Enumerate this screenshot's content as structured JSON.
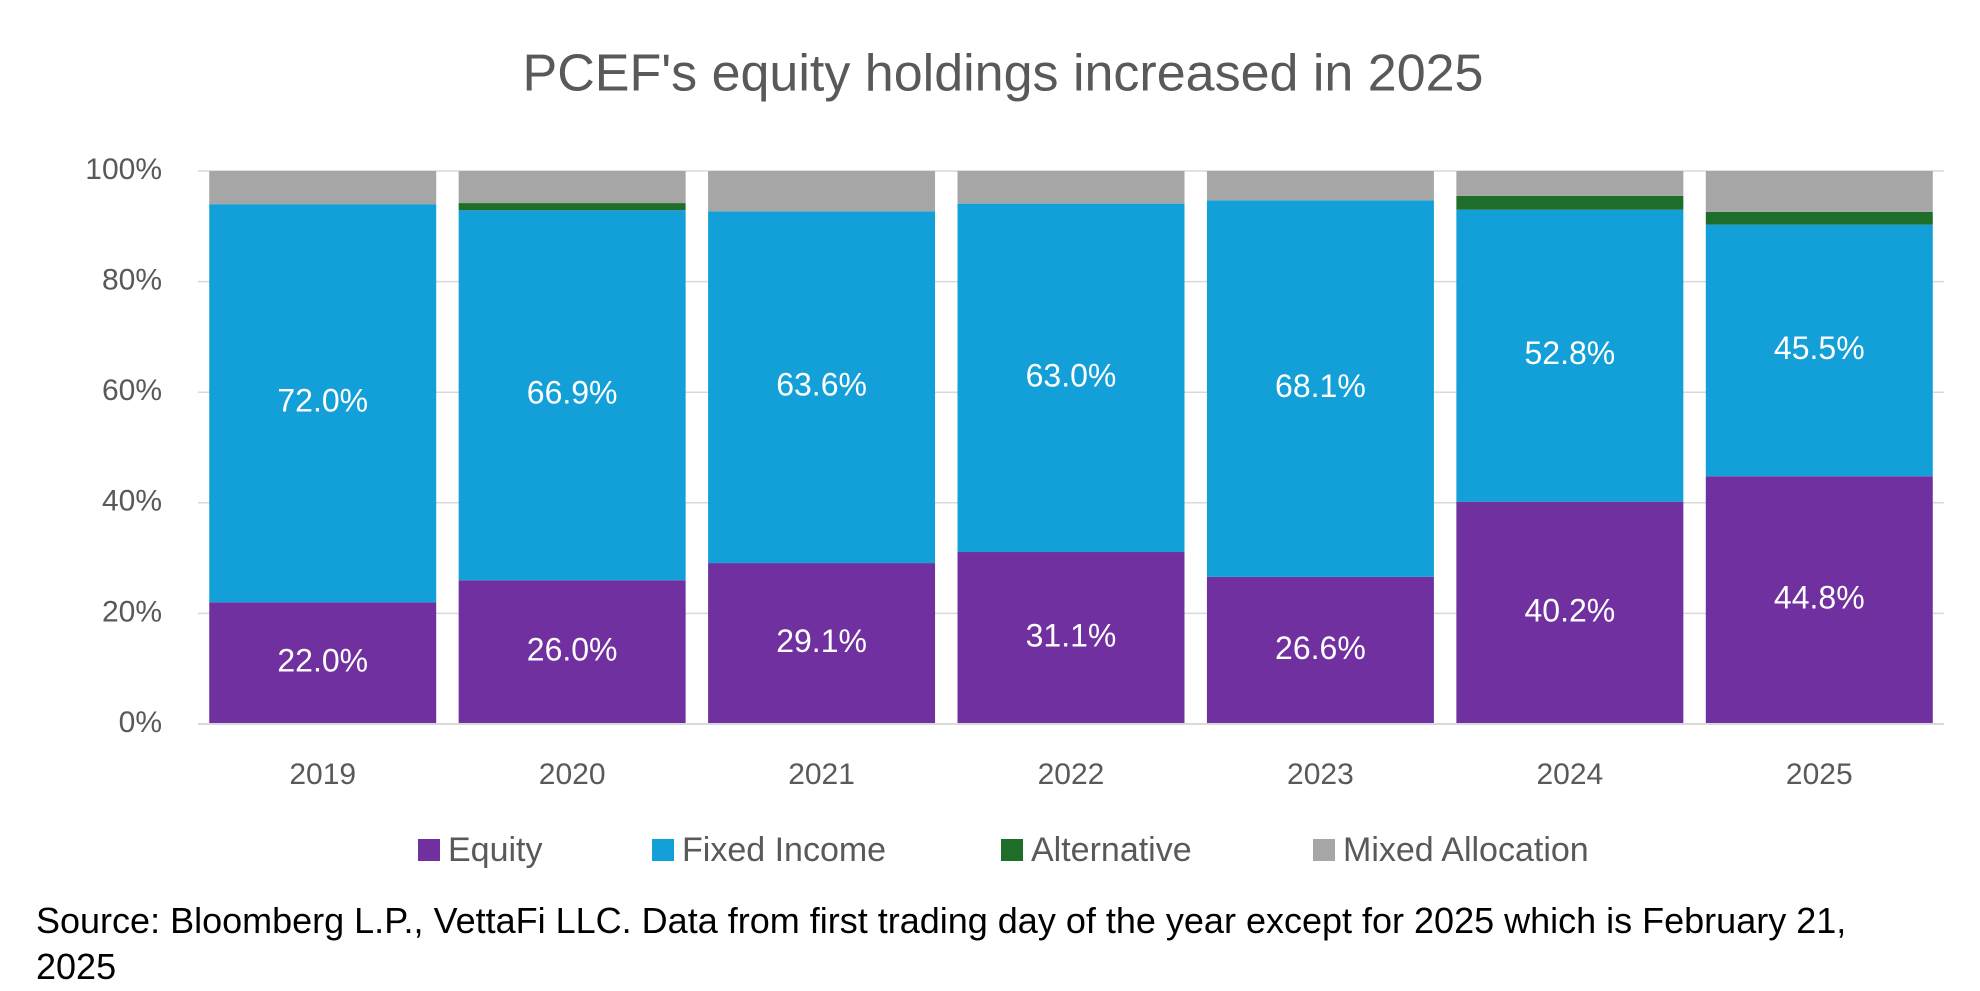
{
  "chart_data": {
    "type": "stacked-bar",
    "title": "PCEF's equity holdings increased in 2025",
    "note": "Source: Bloomberg L.P., VettaFi LLC. Data from first trading day of the year except for 2025 which is February 21, 2025",
    "categories": [
      "2019",
      "2020",
      "2021",
      "2022",
      "2023",
      "2024",
      "2025"
    ],
    "series": [
      {
        "name": "Equity",
        "color": "#7030a0",
        "values": [
          22.0,
          26.0,
          29.1,
          31.1,
          26.6,
          40.2,
          44.8
        ],
        "value_labels": [
          "22.0%",
          "26.0%",
          "29.1%",
          "31.1%",
          "26.6%",
          "40.2%",
          "44.8%"
        ]
      },
      {
        "name": "Fixed Income",
        "color": "#139fd7",
        "values": [
          72.0,
          66.9,
          63.6,
          63.0,
          68.1,
          52.8,
          45.5
        ],
        "value_labels": [
          "72.0%",
          "66.9%",
          "63.6%",
          "63.0%",
          "68.1%",
          "52.8%",
          "45.5%"
        ]
      },
      {
        "name": "Alternative",
        "color": "#1e6e2a",
        "values": [
          0,
          1.3,
          0,
          0,
          0,
          2.5,
          2.3
        ]
      },
      {
        "name": "Mixed Allocation",
        "color": "#a6a6a6",
        "values": [
          6.0,
          5.8,
          7.3,
          5.9,
          5.3,
          4.5,
          7.4
        ]
      }
    ],
    "ylim": [
      0,
      100
    ],
    "yticks": [
      {
        "value": 0,
        "label": "0%"
      },
      {
        "value": 20,
        "label": "20%"
      },
      {
        "value": 40,
        "label": "40%"
      },
      {
        "value": 60,
        "label": "60%"
      },
      {
        "value": 80,
        "label": "80%"
      },
      {
        "value": 100,
        "label": "100%"
      }
    ],
    "grid": true,
    "legend": "bottom"
  }
}
